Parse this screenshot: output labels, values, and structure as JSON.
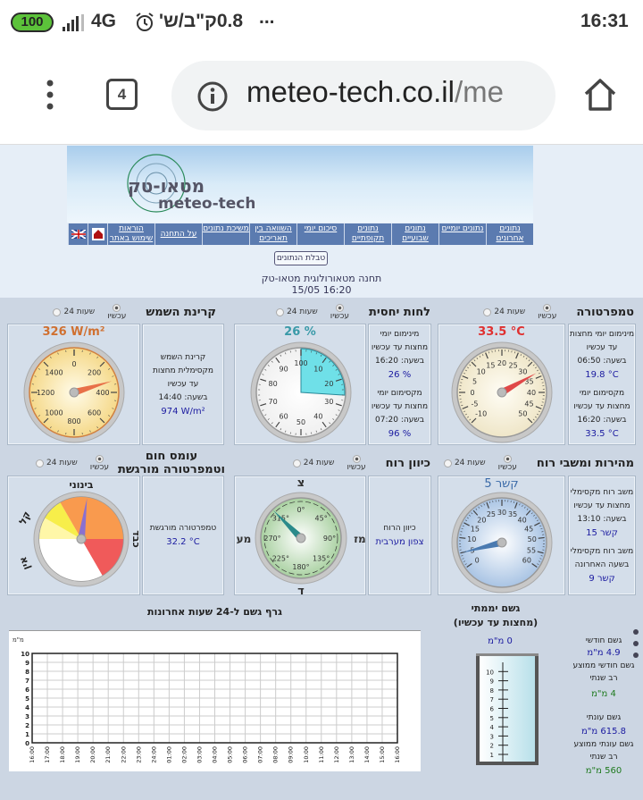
{
  "status_bar": {
    "battery": "100",
    "network": "4G",
    "data_speed": "0.8ק\"ב/ש'",
    "more": "...",
    "time": "16:31"
  },
  "browser": {
    "tab_count": "4",
    "url_main": "meteo-tech.co.il",
    "url_rest": "/me"
  },
  "header": {
    "logo_he": "מטאו-טק",
    "logo_en": "meteo-tech",
    "nav": [
      "נתונים אחרונים",
      "נתונים יומיים",
      "נתונים שבועיים",
      "נתונים תקופתיים",
      "סיכום יומי",
      "השוואה בין תאריכים",
      "משיכת נתונים",
      "על התחנה",
      "הוראות שימוש באתר"
    ],
    "data_table_button": "טבלת הנתונים",
    "station_title": "תחנה מטאורולוגית מטאו-טק",
    "timestamp": "15/05 16:20"
  },
  "radio": {
    "now": "עכשיו",
    "h24": "24 שעות"
  },
  "panels": {
    "temperature": {
      "title": "טמפרטורה",
      "value": 33.5,
      "value_label": "33.5 °C",
      "labels": [
        "-10",
        "-5",
        "0",
        "5",
        "10",
        "15",
        "20",
        "25",
        "30",
        "35",
        "40",
        "45",
        "50"
      ],
      "min_title": "מינימום יומי מחצות עד עכשיו",
      "min_time": "בשעה: 06:50",
      "min_value": "19.8 °C",
      "max_title": "מקסימום יומי מחצות עד עכשיו",
      "max_time": "בשעה: 16:20",
      "max_value": "33.5 °C"
    },
    "humidity": {
      "title": "לחות יחסית",
      "value": 26,
      "value_label": "26 %",
      "labels": [
        "100",
        "10",
        "20",
        "30",
        "40",
        "50",
        "60",
        "70",
        "80",
        "90"
      ],
      "min_title": "מינימום יומי מחצות עד עכשיו",
      "min_time": "בשעה: 16:20",
      "min_value": "26 %",
      "max_title": "מקסימום יומי מחצות עד עכשיו",
      "max_time": "בשעה: 07:20",
      "max_value": "96 %"
    },
    "solar": {
      "title": "קרינת השמש",
      "value": 326,
      "value_label": "326 W/m²",
      "labels": [
        "0",
        "200",
        "400",
        "600",
        "800",
        "1000",
        "1200",
        "1400"
      ],
      "max_title": "קרינת השמש מקסימלית מחצות עד עכשיו",
      "max_time": "בשעה: 14:40",
      "max_value": "974 W/m²"
    },
    "wind_speed": {
      "title": "מהירות ומשבי רוח",
      "value": 5,
      "value_label": "5 קשר",
      "labels": [
        "0",
        "5",
        "10",
        "15",
        "20",
        "25",
        "30",
        "35",
        "40",
        "45",
        "50",
        "55",
        "60"
      ],
      "gust_title": "משב רוח מקסימלי מחצות עד עכשיו",
      "gust_time": "בשעה: 13:10",
      "gust_value": "15 קשר",
      "hour_title": "משב רוח מקסימלי בשעה האחרונה",
      "hour_value": "9 קשר"
    },
    "wind_dir": {
      "title": "כיוון רוח",
      "value": 315,
      "labels": [
        "0°",
        "45°",
        "90°",
        "135°",
        "180°",
        "225°",
        "270°",
        "315°"
      ],
      "north": "צ",
      "east": "מז",
      "south": "ד",
      "west": "מע",
      "info_title": "כיוון הרוח",
      "info_value": "צפון מערבית"
    },
    "heat": {
      "title": "עומס חום וטמפרטורה מורגשת",
      "level": "בינוני",
      "labels": {
        "none": "אין",
        "light": "קל",
        "medium": "בינוני",
        "heavy": "כבד"
      },
      "feels_title": "טמפרטורה מורגשת",
      "feels_value": "32.2 °C",
      "colors": {
        "none": "#ffffff",
        "none2": "#fff7a8",
        "light": "#f7ee4a",
        "medium": "#f99a4e",
        "heavy": "#f05a5a"
      }
    }
  },
  "rain": {
    "title": "גשם יממתי",
    "subtitle": "(מחצות עד עכשיו)",
    "daily": "0 מ\"מ",
    "tube_labels": [
      "1",
      "2",
      "3",
      "4",
      "5",
      "6",
      "7",
      "8",
      "9",
      "10"
    ],
    "monthly_title": "גשם חודשי",
    "monthly_value": "4.9 מ\"מ",
    "monthly_avg_title": "גשם חודשי ממוצע רב שנתי",
    "monthly_avg_value": "4 מ\"מ",
    "season_title": "גשם עונתי",
    "season_value": "615.8 מ\"מ",
    "season_avg_title": "גשם עונתי ממוצע רב שנתי",
    "season_avg_value": "560 מ\"מ"
  },
  "chart_data": {
    "type": "bar",
    "title": "גרף גשם ל-24 שעות אחרונות",
    "ylabel": "מ\"מ",
    "xlabel": "",
    "ylim": [
      0,
      10
    ],
    "grid": true,
    "yticks": [
      "0",
      "1",
      "2",
      "3",
      "4",
      "5",
      "6",
      "7",
      "8",
      "9",
      "10"
    ],
    "categories": [
      "16:00",
      "17:00",
      "18:00",
      "19:00",
      "20:00",
      "21:00",
      "22:00",
      "23:00",
      "24:00",
      "01:00",
      "02:00",
      "03:00",
      "04:00",
      "05:00",
      "06:00",
      "07:00",
      "08:00",
      "09:00",
      "10:00",
      "11:00",
      "12:00",
      "13:00",
      "14:00",
      "15:00",
      "16:00"
    ],
    "values": [
      0,
      0,
      0,
      0,
      0,
      0,
      0,
      0,
      0,
      0,
      0,
      0,
      0,
      0,
      0,
      0,
      0,
      0,
      0,
      0,
      0,
      0,
      0,
      0,
      0
    ]
  }
}
